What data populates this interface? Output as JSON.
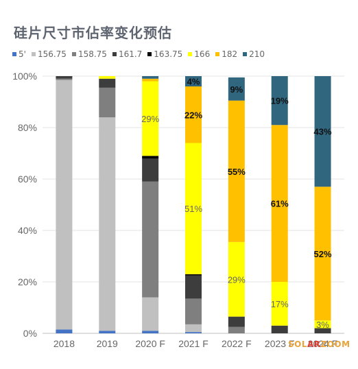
{
  "title": "硅片尺寸市佔率变化预估",
  "watermark": {
    "part1": "SOL",
    "part2": "AR",
    "part3": "ZOOM"
  },
  "chart_data": {
    "type": "bar",
    "stacked": true,
    "categories": [
      "2018",
      "2019",
      "2020 F",
      "2021 F",
      "2022 F",
      "2023 F",
      "2024 F"
    ],
    "ylim": [
      0,
      100
    ],
    "yticks": [
      "0%",
      "20%",
      "40%",
      "60%",
      "80%",
      "100%"
    ],
    "legend_position": "top",
    "series": [
      {
        "name": "5'",
        "color": "#4472c4",
        "values": [
          1.5,
          1,
          1,
          0.5,
          0,
          0,
          0
        ]
      },
      {
        "name": "156.75",
        "color": "#c0c0c0",
        "values": [
          97,
          83,
          13,
          3,
          0,
          0,
          0
        ]
      },
      {
        "name": "158.75",
        "color": "#7f7f7f",
        "values": [
          0.5,
          11.5,
          45,
          10,
          2.5,
          0,
          0
        ]
      },
      {
        "name": "161.7",
        "color": "#3d3d3d",
        "values": [
          1,
          3.5,
          9,
          9,
          4,
          3,
          2
        ]
      },
      {
        "name": "163.75",
        "color": "#000000",
        "values": [
          0,
          0,
          1,
          0.5,
          0,
          0,
          0
        ]
      },
      {
        "name": "166",
        "color": "#ffff00",
        "values": [
          0,
          1,
          29,
          51,
          29,
          17,
          3
        ]
      },
      {
        "name": "182",
        "color": "#ffc000",
        "values": [
          0,
          0,
          1,
          22,
          55,
          61,
          52
        ]
      },
      {
        "name": "210",
        "color": "#31667f",
        "values": [
          0,
          0,
          1,
          4,
          9,
          19,
          43
        ]
      }
    ],
    "data_labels": [
      {
        "category": 2,
        "series": 5,
        "text": "29%"
      },
      {
        "category": 3,
        "series": 5,
        "text": "51%"
      },
      {
        "category": 3,
        "series": 6,
        "text": "22%"
      },
      {
        "category": 3,
        "series": 7,
        "text": "4%"
      },
      {
        "category": 4,
        "series": 5,
        "text": "29%"
      },
      {
        "category": 4,
        "series": 6,
        "text": "55%"
      },
      {
        "category": 4,
        "series": 7,
        "text": "9%"
      },
      {
        "category": 5,
        "series": 5,
        "text": "17%"
      },
      {
        "category": 5,
        "series": 6,
        "text": "61%"
      },
      {
        "category": 5,
        "series": 7,
        "text": "19%"
      },
      {
        "category": 6,
        "series": 5,
        "text": "3%"
      },
      {
        "category": 6,
        "series": 6,
        "text": "52%"
      },
      {
        "category": 6,
        "series": 7,
        "text": "43%"
      }
    ]
  }
}
